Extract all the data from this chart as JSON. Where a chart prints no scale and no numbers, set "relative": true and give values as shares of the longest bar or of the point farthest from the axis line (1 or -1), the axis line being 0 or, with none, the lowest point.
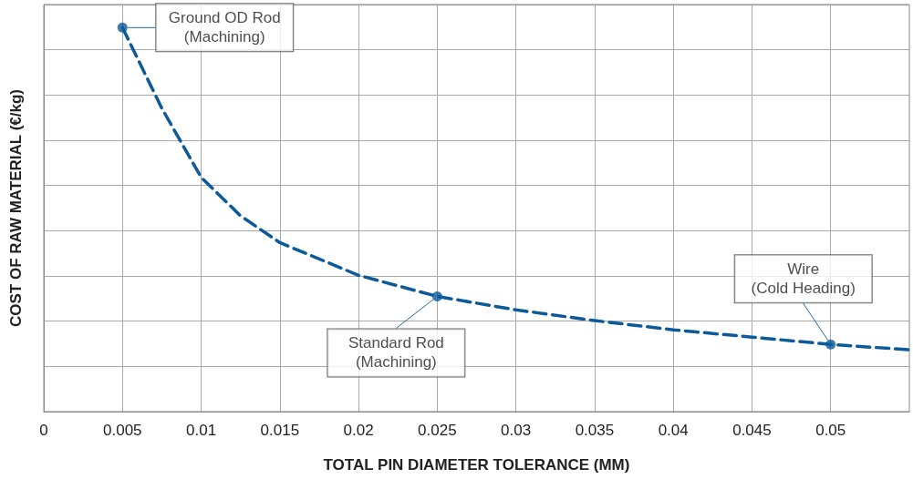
{
  "chart_data": {
    "type": "line",
    "xlabel": "TOTAL PIN DIAMETER TOLERANCE (MM)",
    "ylabel": "COST OF RAW MATERIAL (€/kg)",
    "relative": true,
    "grid": true,
    "xlim": [
      0,
      0.055
    ],
    "xticks": [
      0,
      0.005,
      0.01,
      0.015,
      0.02,
      0.025,
      0.03,
      0.035,
      0.04,
      0.045,
      0.05
    ],
    "series": [
      {
        "color": "#0d5a9a",
        "line_style": "dashed",
        "marker": "none",
        "x": [
          0.005,
          0.0075,
          0.01,
          0.0125,
          0.015,
          0.02,
          0.025,
          0.03,
          0.035,
          0.04,
          0.045,
          0.05,
          0.055
        ],
        "values": [
          1,
          0.79,
          0.61,
          0.51,
          0.44,
          0.355,
          0.3,
          0.265,
          0.237,
          0.213,
          0.194,
          0.175,
          0.161
        ]
      },
      {
        "type": "scatter",
        "color": "#0d5a9a",
        "marker": "circle",
        "x": [
          0.005,
          0.025,
          0.05
        ],
        "values": [
          1,
          0.3,
          0.175
        ]
      }
    ],
    "annotations": [
      {
        "text": "Ground OD Rod\n(Machining)",
        "x": 0.005,
        "y": 1
      },
      {
        "text": "Standard Rod\n(Machining)",
        "x": 0.025,
        "y": 0.3
      },
      {
        "text": "Wire\n(Cold Heading)",
        "x": 0.05,
        "y": 0.175
      }
    ]
  }
}
